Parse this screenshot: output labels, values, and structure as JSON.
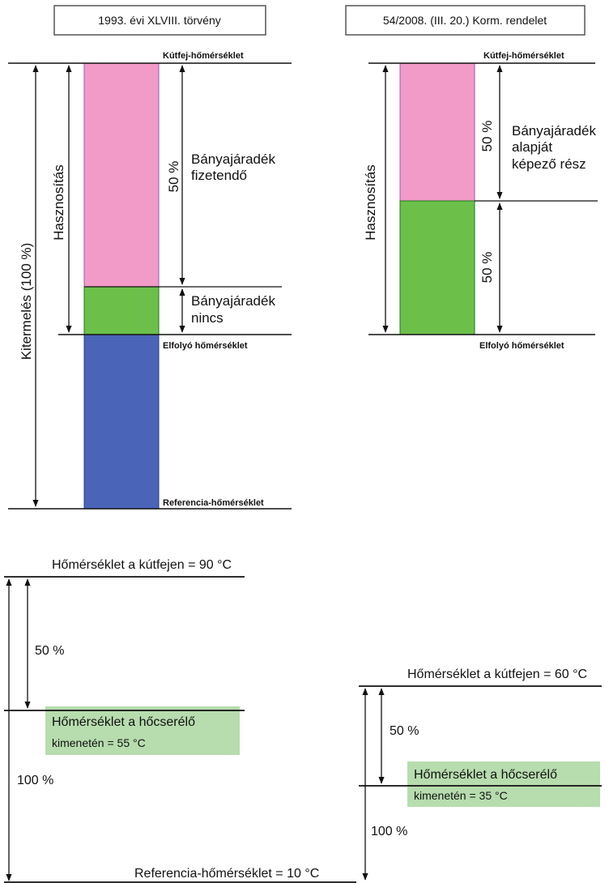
{
  "colors": {
    "pink": "#f29ac8",
    "green": "#6cc04a",
    "blue": "#4a64b8",
    "light_green_box": "#b7dcae",
    "pink_border": "#9a5ea8",
    "green_border": "#1b7a1b"
  },
  "left_diagram": {
    "title": "1993. évi XLVIII. törvény",
    "kutfej_label": "Kútfej-hőmérséklet",
    "elfolyo_label": "Elfolyó hőmérséklet",
    "referencia_label": "Referencia-hőmérséklet",
    "kitermeles_label": "Kitermelés (100 %)",
    "hasznositas_label": "Hasznosítás",
    "percent_label": "50 %",
    "fizetendo_line1": "Bányajáradék",
    "fizetendo_line2": "fizetendő",
    "nincs_line1": "Bányajáradék",
    "nincs_line2": "nincs"
  },
  "right_diagram": {
    "title": "54/2008. (III. 20.) Korm. rendelet",
    "kutfej_label": "Kútfej-hőmérséklet",
    "elfolyo_label": "Elfolyó hőmérséklet",
    "hasznositas_label": "Hasznosítás",
    "percent_top": "50 %",
    "percent_bottom": "50 %",
    "alap_line1": "Bányajáradék",
    "alap_line2": "alapját",
    "alap_line3": "képező rész"
  },
  "bottom_left": {
    "top_label": "Hőmérséklet a kútfejen = 90 °C",
    "percent_50": "50 %",
    "hx_line1": "Hőmérséklet a hőcserélő",
    "hx_line2": "kimenetén = 55 °C",
    "percent_100": "100 %",
    "ref_label": "Referencia-hőmérséklet = 10 °C"
  },
  "bottom_right": {
    "top_label": "Hőmérséklet a kútfejen = 60 °C",
    "percent_50": "50 %",
    "hx_line1": "Hőmérséklet a hőcserélő",
    "hx_line2": "kimenetén = 35 °C",
    "percent_100": "100 %"
  }
}
